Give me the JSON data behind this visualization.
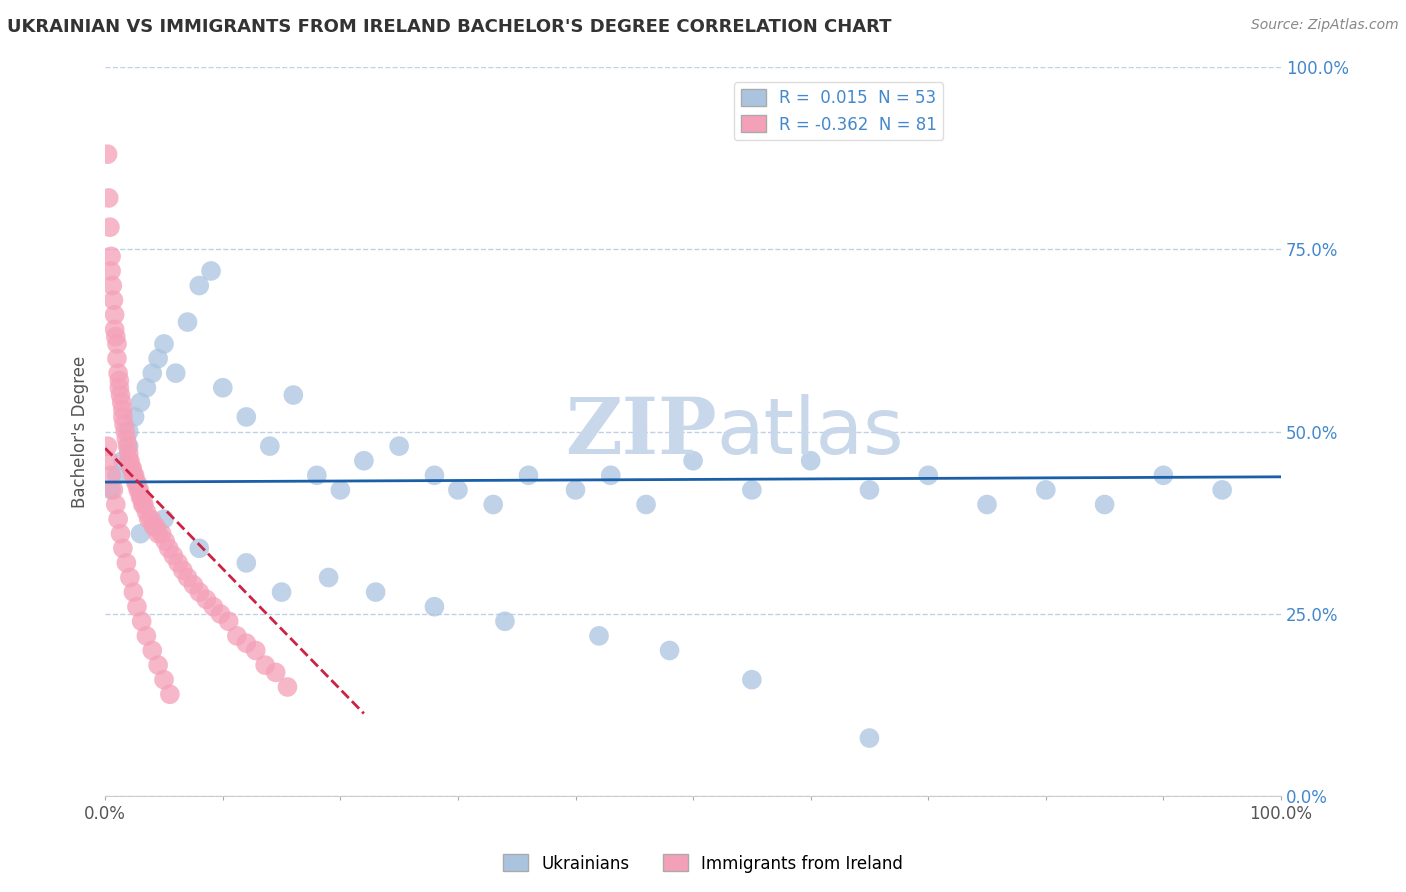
{
  "title": "UKRAINIAN VS IMMIGRANTS FROM IRELAND BACHELOR'S DEGREE CORRELATION CHART",
  "source_text": "Source: ZipAtlas.com",
  "ylabel": "Bachelor's Degree",
  "xlim": [
    0.0,
    1.0
  ],
  "ylim": [
    0.0,
    1.0
  ],
  "xtick_positions": [
    0.0,
    0.1,
    0.2,
    0.3,
    0.4,
    0.5,
    0.6,
    0.7,
    0.8,
    0.9,
    1.0
  ],
  "xtick_labels_show": {
    "0.0": "0.0%",
    "1.0": "100.0%"
  },
  "ytick_vals": [
    0.0,
    0.25,
    0.5,
    0.75,
    1.0
  ],
  "ytick_labels": [
    "0.0%",
    "25.0%",
    "50.0%",
    "75.0%",
    "100.0%"
  ],
  "legend_labels": [
    "Ukrainians",
    "Immigrants from Ireland"
  ],
  "blue_R": 0.015,
  "blue_N": 53,
  "pink_R": -0.362,
  "pink_N": 81,
  "blue_color": "#aac4e0",
  "pink_color": "#f4a0b8",
  "blue_line_color": "#1a5fa8",
  "pink_line_color": "#cc2244",
  "title_color": "#333333",
  "source_color": "#888888",
  "grid_color": "#c0d0e8",
  "watermark_color": "#c8d8ea",
  "background_color": "#ffffff",
  "ytick_color": "#4488cc",
  "xtick_color": "#555555",
  "blue_scatter_x": [
    0.005,
    0.01,
    0.015,
    0.02,
    0.02,
    0.025,
    0.03,
    0.035,
    0.04,
    0.045,
    0.05,
    0.06,
    0.07,
    0.08,
    0.09,
    0.1,
    0.12,
    0.14,
    0.16,
    0.18,
    0.2,
    0.22,
    0.25,
    0.28,
    0.3,
    0.33,
    0.36,
    0.4,
    0.43,
    0.46,
    0.5,
    0.55,
    0.6,
    0.65,
    0.7,
    0.75,
    0.8,
    0.85,
    0.9,
    0.95,
    0.03,
    0.05,
    0.08,
    0.12,
    0.15,
    0.19,
    0.23,
    0.28,
    0.34,
    0.42,
    0.48,
    0.55,
    0.65
  ],
  "blue_scatter_y": [
    0.42,
    0.44,
    0.46,
    0.48,
    0.5,
    0.52,
    0.54,
    0.56,
    0.58,
    0.6,
    0.62,
    0.58,
    0.65,
    0.7,
    0.72,
    0.56,
    0.52,
    0.48,
    0.55,
    0.44,
    0.42,
    0.46,
    0.48,
    0.44,
    0.42,
    0.4,
    0.44,
    0.42,
    0.44,
    0.4,
    0.46,
    0.42,
    0.46,
    0.42,
    0.44,
    0.4,
    0.42,
    0.4,
    0.44,
    0.42,
    0.36,
    0.38,
    0.34,
    0.32,
    0.28,
    0.3,
    0.28,
    0.26,
    0.24,
    0.22,
    0.2,
    0.16,
    0.08
  ],
  "pink_scatter_x": [
    0.002,
    0.003,
    0.004,
    0.005,
    0.005,
    0.006,
    0.007,
    0.008,
    0.008,
    0.009,
    0.01,
    0.01,
    0.011,
    0.012,
    0.012,
    0.013,
    0.014,
    0.015,
    0.015,
    0.016,
    0.017,
    0.018,
    0.019,
    0.02,
    0.02,
    0.021,
    0.022,
    0.023,
    0.024,
    0.025,
    0.026,
    0.027,
    0.028,
    0.029,
    0.03,
    0.031,
    0.032,
    0.033,
    0.035,
    0.037,
    0.039,
    0.041,
    0.043,
    0.045,
    0.048,
    0.051,
    0.054,
    0.058,
    0.062,
    0.066,
    0.07,
    0.075,
    0.08,
    0.086,
    0.092,
    0.098,
    0.105,
    0.112,
    0.12,
    0.128,
    0.136,
    0.145,
    0.155,
    0.002,
    0.003,
    0.005,
    0.007,
    0.009,
    0.011,
    0.013,
    0.015,
    0.018,
    0.021,
    0.024,
    0.027,
    0.031,
    0.035,
    0.04,
    0.045,
    0.05,
    0.055
  ],
  "pink_scatter_y": [
    0.88,
    0.82,
    0.78,
    0.74,
    0.72,
    0.7,
    0.68,
    0.66,
    0.64,
    0.63,
    0.62,
    0.6,
    0.58,
    0.57,
    0.56,
    0.55,
    0.54,
    0.53,
    0.52,
    0.51,
    0.5,
    0.49,
    0.48,
    0.47,
    0.46,
    0.46,
    0.45,
    0.45,
    0.44,
    0.44,
    0.43,
    0.43,
    0.42,
    0.42,
    0.41,
    0.41,
    0.4,
    0.4,
    0.39,
    0.38,
    0.38,
    0.37,
    0.37,
    0.36,
    0.36,
    0.35,
    0.34,
    0.33,
    0.32,
    0.31,
    0.3,
    0.29,
    0.28,
    0.27,
    0.26,
    0.25,
    0.24,
    0.22,
    0.21,
    0.2,
    0.18,
    0.17,
    0.15,
    0.48,
    0.46,
    0.44,
    0.42,
    0.4,
    0.38,
    0.36,
    0.34,
    0.32,
    0.3,
    0.28,
    0.26,
    0.24,
    0.22,
    0.2,
    0.18,
    0.16,
    0.14
  ]
}
